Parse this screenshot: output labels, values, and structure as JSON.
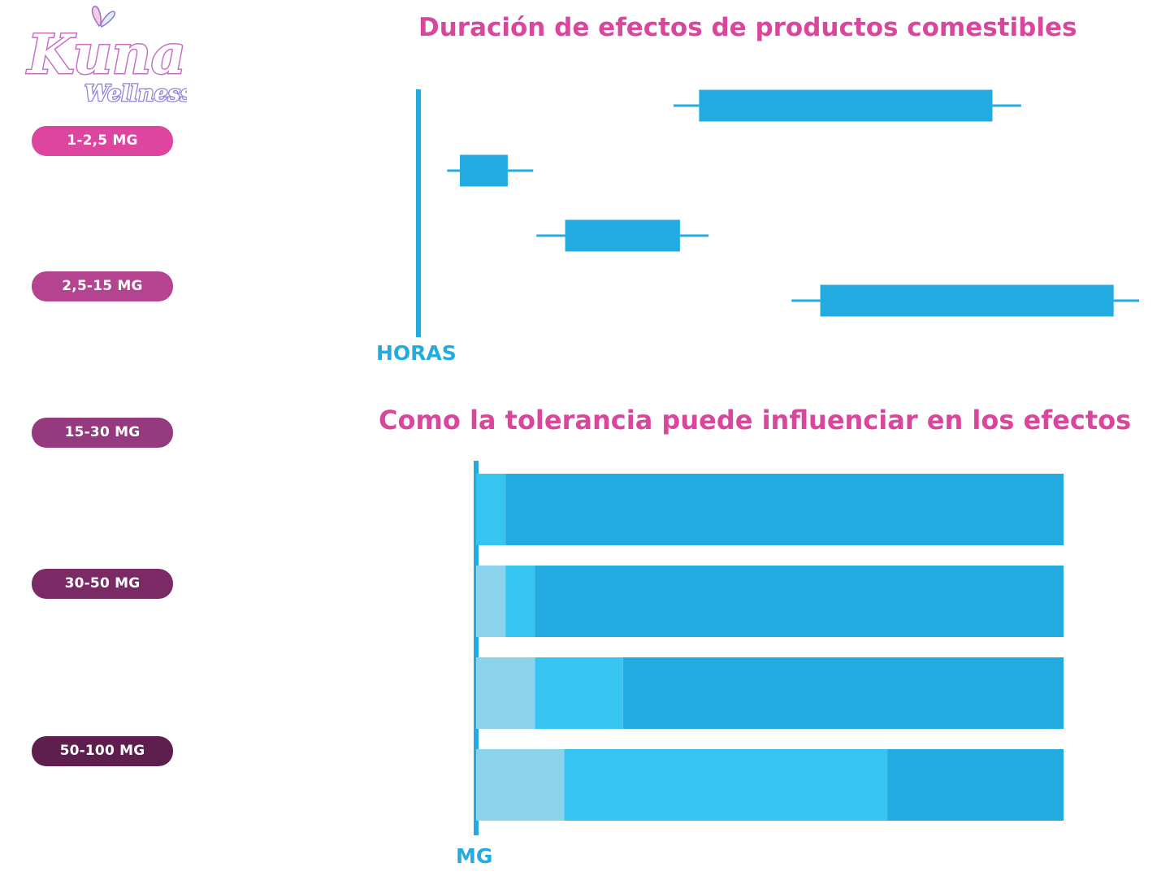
{
  "brand": {
    "logo_main": "Kuna",
    "logo_sub": "Wellness"
  },
  "dose_labels": [
    "1-2,5 MG",
    "2,5-15 MG",
    "15-30 MG",
    "30-50 MG",
    "50-100 MG"
  ],
  "colors": {
    "pill_colors": [
      "#de459e",
      "#b4448f",
      "#953a7f",
      "#7a2b66",
      "#5e1f4e"
    ],
    "title_pink": "#d9479d",
    "bar_blue": "#22abe1",
    "bar_cyan": "#36c4f0",
    "bar_light": "#8bd3ed",
    "axis_blue": "#22abe1"
  },
  "chart_data": [
    {
      "type": "box",
      "title": "Duración de efectos de productos comestibles",
      "xlabel": "HORAS",
      "ylabel": "",
      "grid": false,
      "series": [
        {
          "whisker_low": 4.0,
          "q1": 4.4,
          "q3": 9.0,
          "whisker_high": 9.45
        },
        {
          "whisker_low": 0.45,
          "q1": 0.65,
          "q3": 1.4,
          "whisker_high": 1.8
        },
        {
          "whisker_low": 1.85,
          "q1": 2.3,
          "q3": 4.1,
          "whisker_high": 4.55
        },
        {
          "whisker_low": 5.85,
          "q1": 6.3,
          "q3": 10.9,
          "whisker_high": 11.3
        }
      ]
    },
    {
      "type": "bar",
      "orientation": "horizontal",
      "stacked": true,
      "title": "Como la tolerancia puede influenciar en los efectos",
      "xlabel": "MG",
      "ylabel": "",
      "grid": false,
      "segments_per_row": [
        [
          0,
          5,
          95
        ],
        [
          5,
          5,
          90
        ],
        [
          10,
          15,
          75
        ],
        [
          15,
          55,
          30
        ]
      ]
    }
  ]
}
